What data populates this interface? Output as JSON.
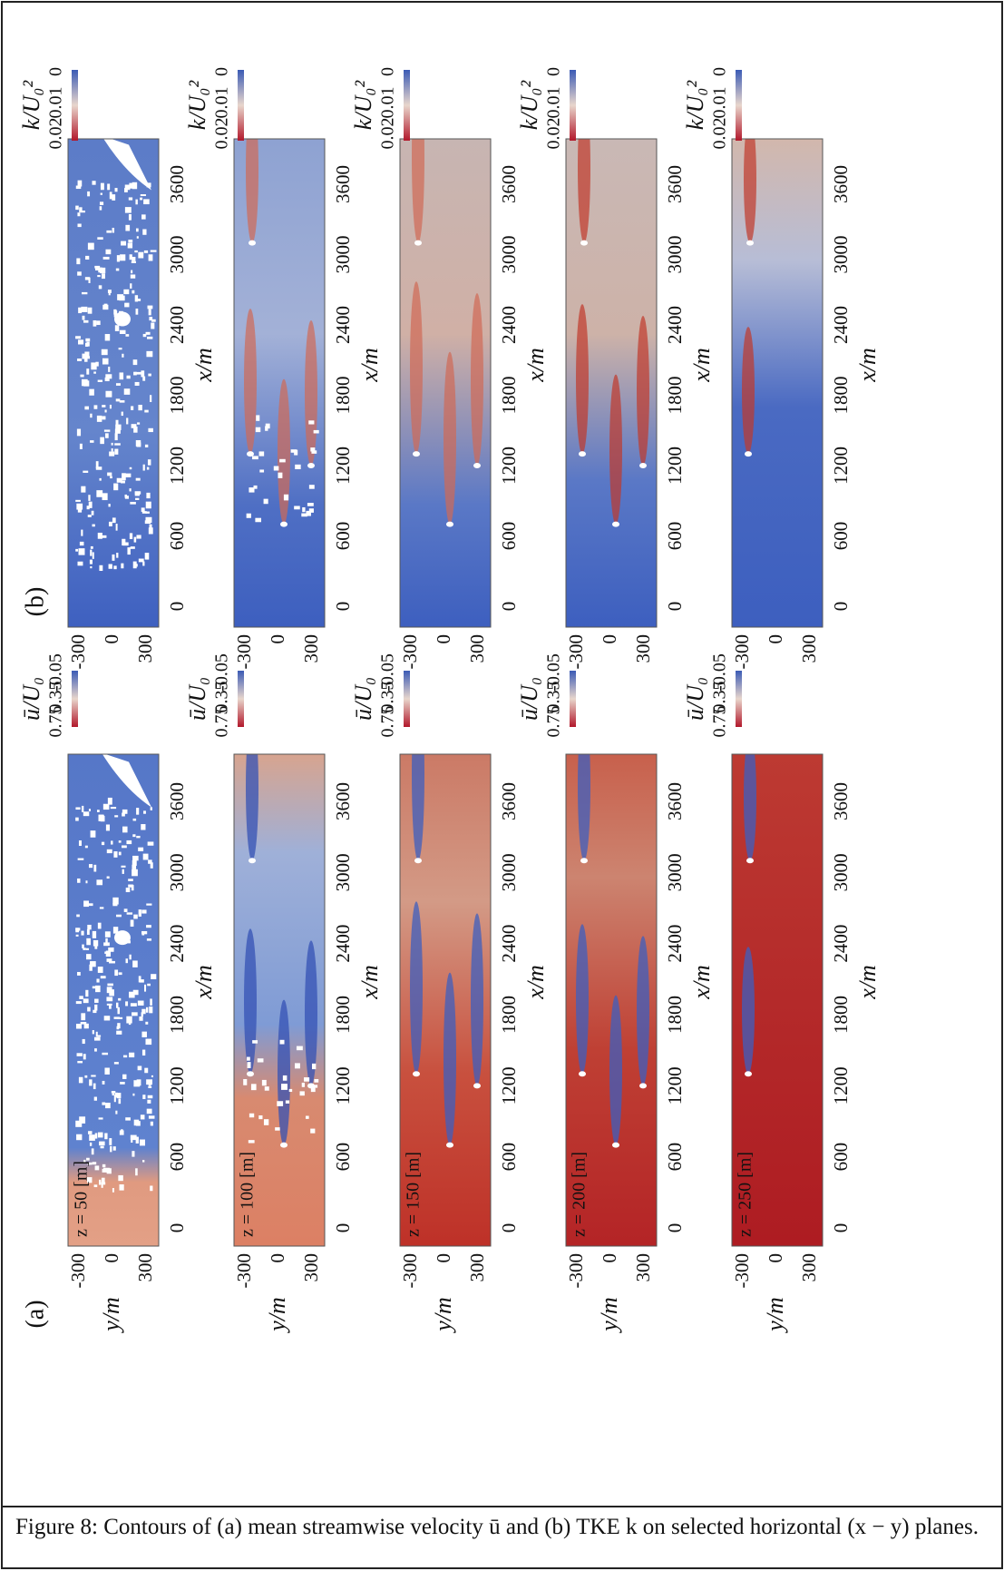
{
  "figure": {
    "panel_a": {
      "label": "(a)",
      "colorbar": {
        "label": "ū/U₀",
        "ticks": [
          0.75,
          0.35,
          -0.05
        ]
      }
    },
    "panel_b": {
      "label": "(b)",
      "colorbar": {
        "label": "k/U₀²",
        "ticks": [
          0.02,
          0.01,
          0
        ]
      }
    },
    "rows": [
      {
        "z_label": "z = 50 [m]"
      },
      {
        "z_label": "z = 100 [m]"
      },
      {
        "z_label": "z = 150 [m]"
      },
      {
        "z_label": "z = 200 [m]"
      },
      {
        "z_label": "z = 250 [m]"
      }
    ],
    "x_axis": {
      "label": "x/m",
      "ticks": [
        0,
        600,
        1200,
        1800,
        2400,
        3000,
        3600
      ]
    },
    "y_axis": {
      "label": "y/m",
      "ticks": [
        -300,
        0,
        300
      ]
    }
  },
  "caption": "Figure 8: Contours of (a) mean streamwise velocity ū and (b) TKE k on selected horizontal (x − y) planes."
}
